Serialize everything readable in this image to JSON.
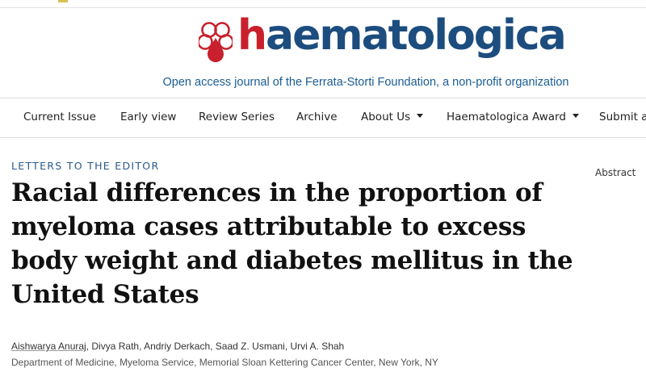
{
  "journal": {
    "name_h": "h",
    "name_rest": "aematologica",
    "tagline": "Open access journal of the Ferrata-Storti Foundation, a non-profit organization"
  },
  "nav": {
    "items": [
      {
        "label": "Current Issue"
      },
      {
        "label": "Early view"
      },
      {
        "label": "Review Series"
      },
      {
        "label": "Archive"
      },
      {
        "label": "About Us"
      },
      {
        "label": "Haematologica Award"
      },
      {
        "label": "Submit a"
      }
    ]
  },
  "article": {
    "section": "LETTERS TO THE EDITOR",
    "title": "Racial differences in the proportion of myeloma cases attributable to excess body weight and diabetes mellitus in the United States",
    "authors": [
      "Aishwarya Anuraj",
      "Divya Rath",
      "Andriy Derkach",
      "Saad Z. Usmani",
      "Urvi A. Shah"
    ],
    "affiliation": "Department of Medicine, Myeloma Service, Memorial Sloan Kettering Cancer Center, New York, NY"
  },
  "sidebar": {
    "abstract_label": "Abstract"
  },
  "colors": {
    "brand_blue": "#1c4d7e",
    "brand_red": "#c8202c",
    "tagline_blue": "#1a5c94",
    "section_blue": "#2a5a8a"
  }
}
